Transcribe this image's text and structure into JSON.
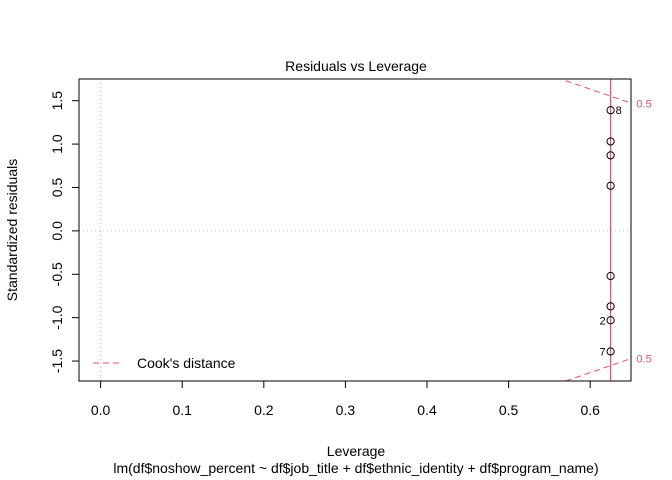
{
  "chart_data": {
    "type": "scatter",
    "title": "Residuals vs Leverage",
    "xlabel": "Leverage",
    "ylabel": "Standardized residuals",
    "subtitle": "lm(df$noshow_percent ~ df$job_title + df$ethnic_identity + df$program_name)",
    "xlim": [
      -0.0265,
      0.65
    ],
    "ylim": [
      -1.73,
      1.75
    ],
    "x_ticks": [
      {
        "v": 0.0,
        "label": "0.0"
      },
      {
        "v": 0.1,
        "label": "0.1"
      },
      {
        "v": 0.2,
        "label": "0.2"
      },
      {
        "v": 0.3,
        "label": "0.3"
      },
      {
        "v": 0.4,
        "label": "0.4"
      },
      {
        "v": 0.5,
        "label": "0.5"
      },
      {
        "v": 0.6,
        "label": "0.6"
      }
    ],
    "y_ticks": [
      {
        "v": -1.5,
        "label": "-1.5"
      },
      {
        "v": -1.0,
        "label": "-1.0"
      },
      {
        "v": -0.5,
        "label": "-0.5"
      },
      {
        "v": 0.0,
        "label": "0.0"
      },
      {
        "v": 0.5,
        "label": "0.5"
      },
      {
        "v": 1.0,
        "label": "1.0"
      },
      {
        "v": 1.5,
        "label": "1.5"
      }
    ],
    "points": [
      {
        "x": 0.625,
        "y": 1.39,
        "label": "8"
      },
      {
        "x": 0.625,
        "y": 1.03,
        "label": ""
      },
      {
        "x": 0.625,
        "y": 0.87,
        "label": ""
      },
      {
        "x": 0.625,
        "y": 0.52,
        "label": ""
      },
      {
        "x": 0.625,
        "y": -0.52,
        "label": ""
      },
      {
        "x": 0.625,
        "y": -0.87,
        "label": ""
      },
      {
        "x": 0.625,
        "y": -1.03,
        "label": "2"
      },
      {
        "x": 0.625,
        "y": -1.39,
        "label": "7"
      }
    ],
    "smooth_line": {
      "x": [
        0.625,
        0.625
      ],
      "y": [
        -1.73,
        1.75
      ]
    },
    "cooks_contours": [
      {
        "level": 0.5,
        "label": "0.5",
        "x": [
          0.57,
          0.6505
        ],
        "y": [
          1.73,
          1.47
        ],
        "label_pos": "upper"
      },
      {
        "level": 0.5,
        "label": "0.5",
        "x": [
          0.57,
          0.6505
        ],
        "y": [
          -1.73,
          -1.47
        ],
        "label_pos": "lower"
      }
    ],
    "reference_lines": {
      "h": 0.0,
      "v": 0.0
    },
    "legend": {
      "position": "bottom-left",
      "entries": [
        "Cook's distance"
      ]
    },
    "colors": {
      "accent": "#DF536B",
      "ref_line": "#BEBEBE",
      "axis": "#000000"
    }
  }
}
